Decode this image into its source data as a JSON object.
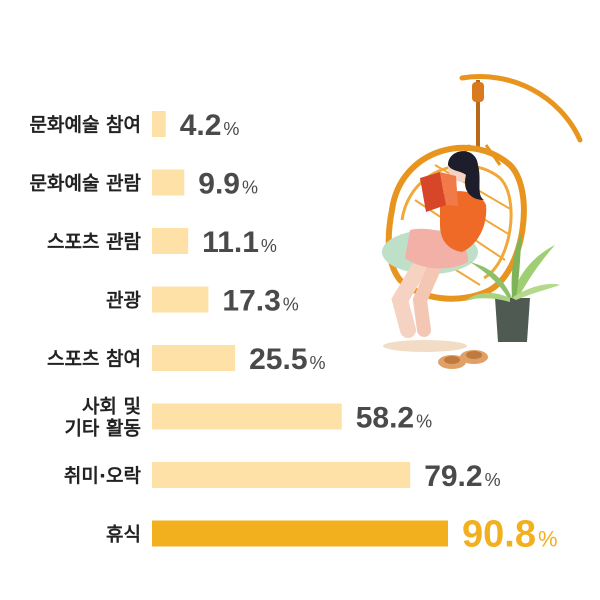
{
  "chart_data": {
    "type": "bar",
    "orientation": "horizontal",
    "categories": [
      [
        "문화예술 참여"
      ],
      [
        "문화예술 관람"
      ],
      [
        "스포츠 관람"
      ],
      [
        "관광"
      ],
      [
        "스포츠 참여"
      ],
      [
        "사회 및",
        "기타 활동"
      ],
      [
        "취미·오락"
      ],
      [
        "휴식"
      ]
    ],
    "values": [
      4.2,
      9.9,
      11.1,
      17.3,
      25.5,
      58.2,
      79.2,
      90.8
    ],
    "value_labels": [
      "4.2",
      "9.9",
      "11.1",
      "17.3",
      "25.5",
      "58.2",
      "79.2",
      "90.8"
    ],
    "unit": "%",
    "highlight_index": 7,
    "xlim": [
      0,
      100
    ],
    "grid": false,
    "colors": {
      "bar": "#fde1a6",
      "highlight_bar": "#f2b01e",
      "value_text": "#4a4a4a",
      "highlight_text": "#f2b01e"
    }
  },
  "illustration": {
    "icon": "woman-reading-in-hanging-chair-icon",
    "plant_icon": "potted-plant-icon",
    "slippers_icon": "slippers-icon"
  }
}
